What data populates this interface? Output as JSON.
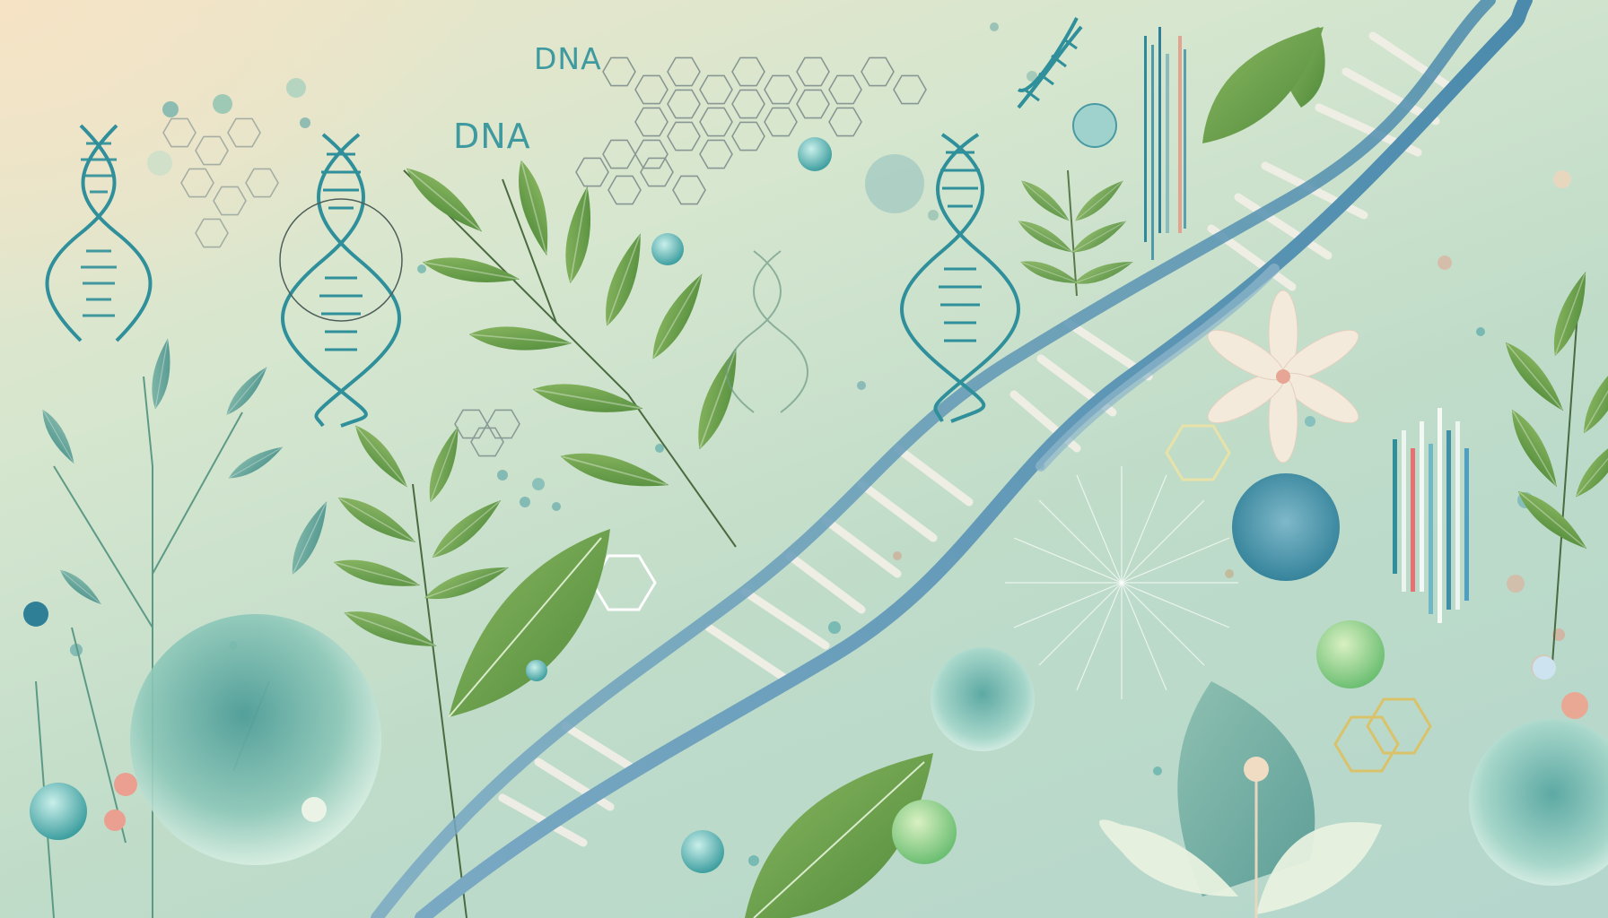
{
  "labels": {
    "dna_top": "DNA",
    "dna_left": "DNA"
  },
  "icons": [
    "dna-helix-icon",
    "hexagon-molecule-icon",
    "leaf-icon",
    "cell-sphere-icon",
    "flower-icon",
    "radial-burst-icon"
  ],
  "colors": {
    "background_top_left": "#f6e3c6",
    "background_bottom_right": "#b4d6cc",
    "helix_blue": "#5f9bb1",
    "helix_teal": "#2f8f9a",
    "leaf_green": "#6e9a45",
    "cell_teal": "#8cc4b6",
    "accent_pink": "#e7a595"
  }
}
